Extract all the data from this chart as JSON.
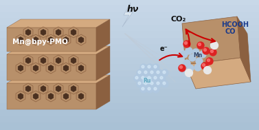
{
  "bg_color_top": "#c8d8e8",
  "bg_color_bottom": "#a8c0d4",
  "pmo_color_main": "#b8906a",
  "pmo_color_dark": "#8b6040",
  "pmo_color_light": "#d4aa80",
  "pmo_color_top": "#c8a070",
  "title_text": "Mn@bpy-PMO",
  "title_color": "#ffffff",
  "hv_text": "hν",
  "hv_color": "#111111",
  "electron_text": "e⁻",
  "ru_text": "Ru",
  "mn_text": "Mn",
  "co2_text": "CO₂",
  "product_text": "CO\nHCOOH",
  "label_color": "#1a3a8a",
  "arrow_color": "#cc0000",
  "ball_blue_light": "#b0c8e0",
  "ball_blue_dark": "#6090b8",
  "ball_red": "#dd2222",
  "ball_white": "#e8e8e8",
  "ball_ru": "#60a8c0",
  "pmo2_color": "#c8a070",
  "lightning_color": "#d0d8e8"
}
